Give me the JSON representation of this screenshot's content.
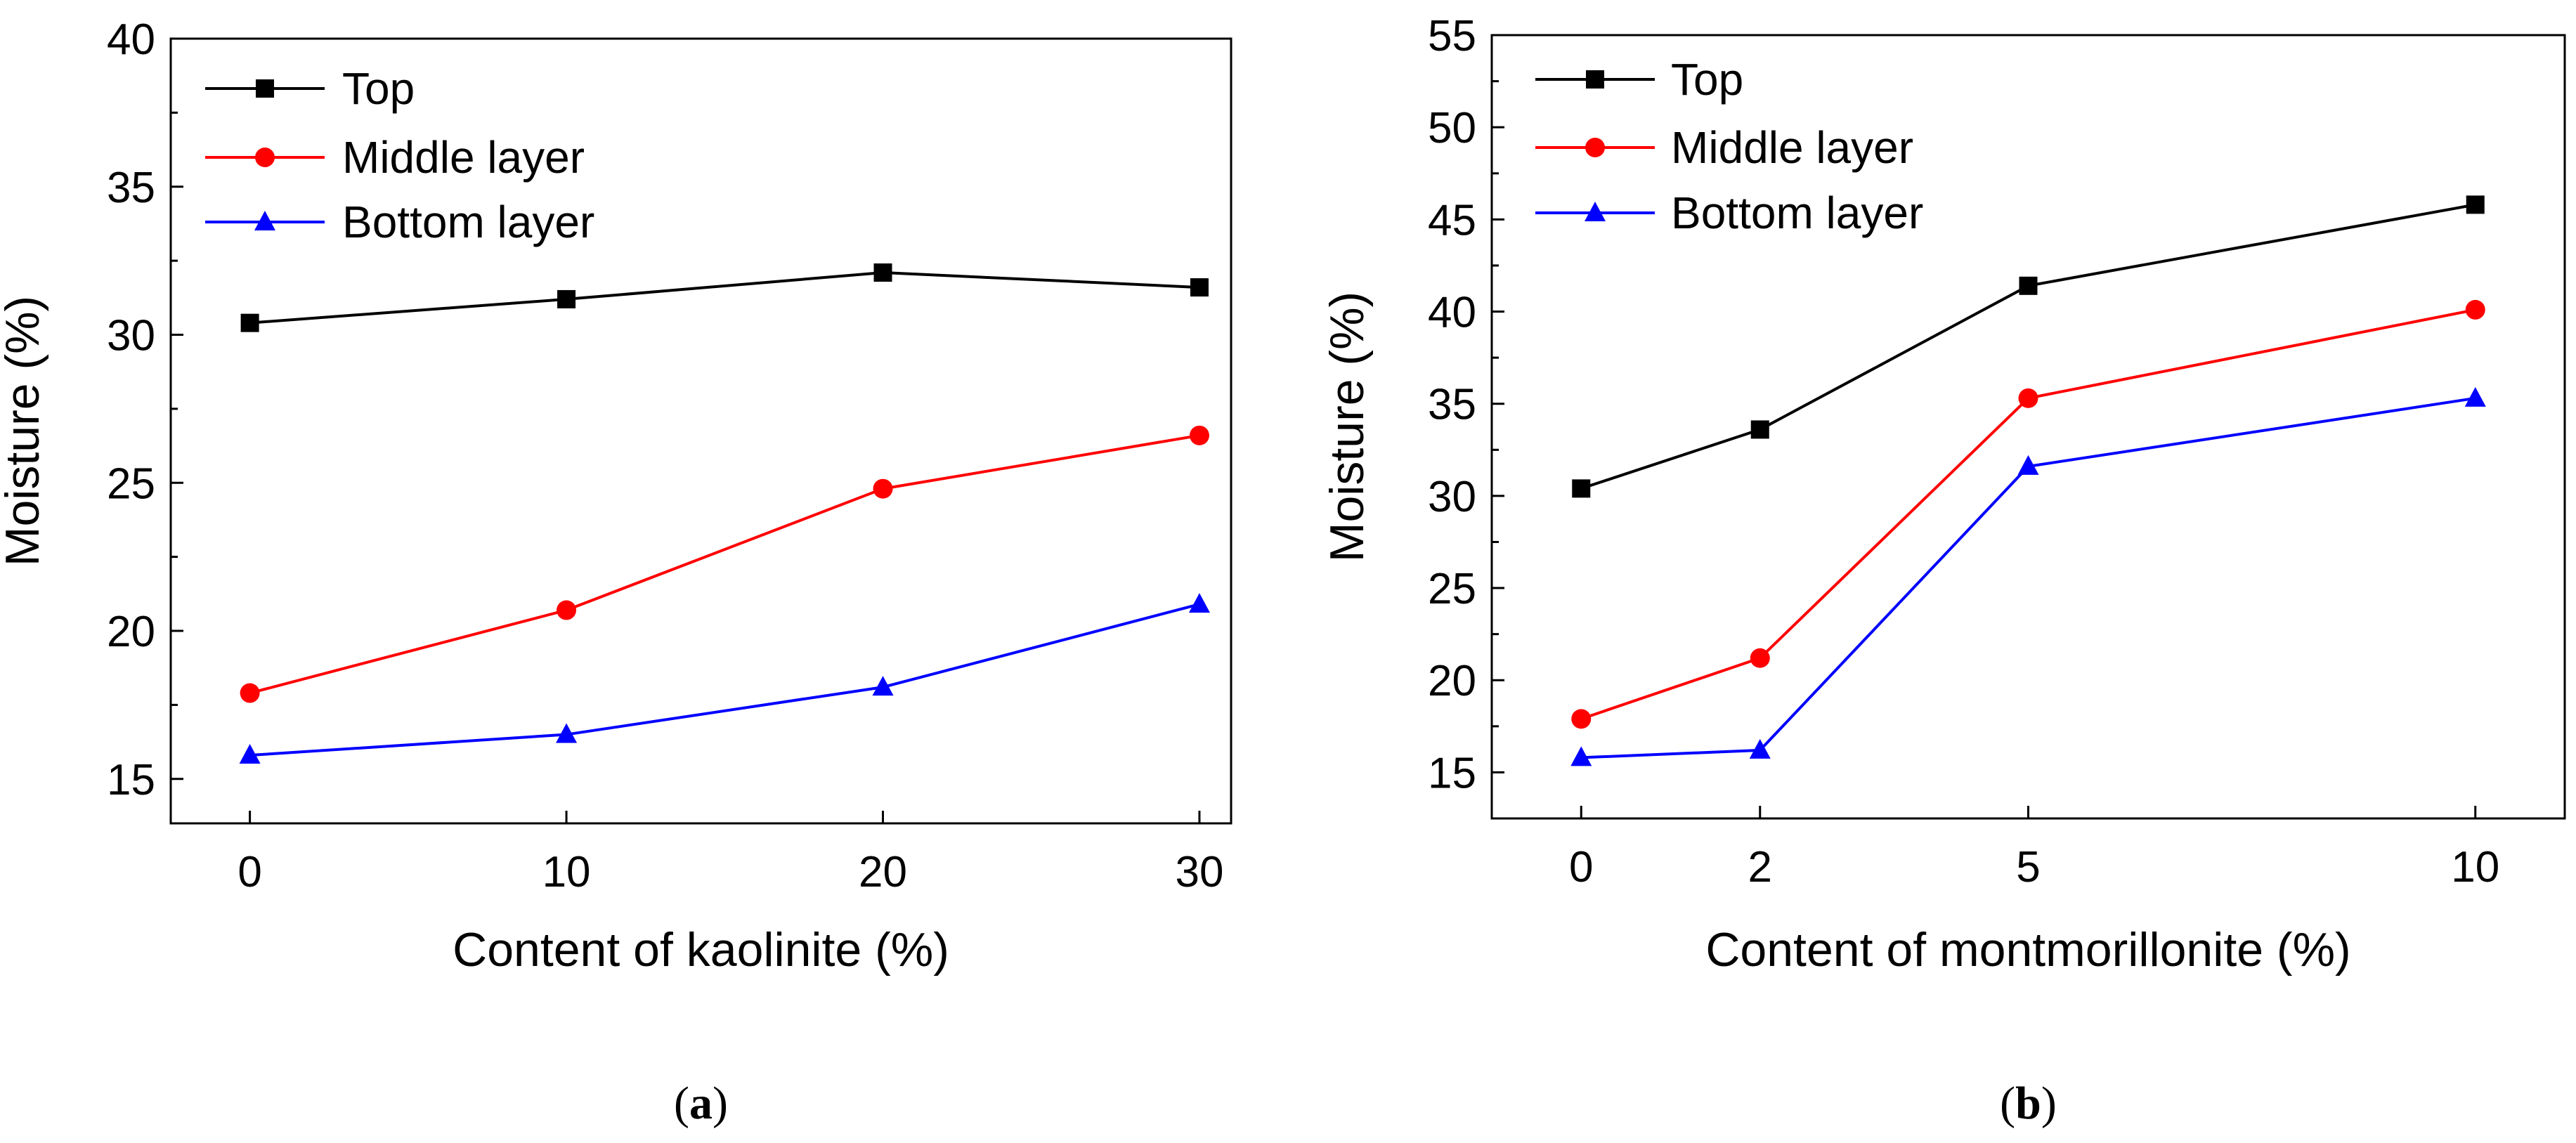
{
  "chart_data": [
    {
      "type": "line",
      "panel_label": "a",
      "title": "",
      "xlabel": "Content of kaolinite (%)",
      "ylabel": "Moisture (%)",
      "x": [
        0,
        10,
        20,
        30
      ],
      "xticks": [
        "0",
        "10",
        "20",
        "30"
      ],
      "xlim": [
        -2.5,
        31
      ],
      "ylim": [
        13.5,
        40
      ],
      "yticks": [
        "15",
        "20",
        "25",
        "30",
        "35",
        "40"
      ],
      "legend_position": "top-left",
      "series": [
        {
          "name": "Top",
          "color": "#000000",
          "marker": "square",
          "values": [
            30.4,
            31.2,
            32.1,
            31.6
          ]
        },
        {
          "name": "Middle layer",
          "color": "#ff0000",
          "marker": "circle",
          "values": [
            17.9,
            20.7,
            24.8,
            26.6
          ]
        },
        {
          "name": "Bottom layer",
          "color": "#0000ff",
          "marker": "triangle",
          "values": [
            15.8,
            16.5,
            18.1,
            20.9
          ]
        }
      ]
    },
    {
      "type": "line",
      "panel_label": "b",
      "title": "",
      "xlabel": "Content of montmorillonite (%)",
      "ylabel": "Moisture (%)",
      "x": [
        0,
        2,
        5,
        10
      ],
      "xticks": [
        "0",
        "2",
        "5",
        "10"
      ],
      "xlim": [
        -1,
        11
      ],
      "ylim": [
        12.5,
        55
      ],
      "yticks": [
        "15",
        "20",
        "25",
        "30",
        "35",
        "40",
        "45",
        "50",
        "55"
      ],
      "legend_position": "top-left",
      "series": [
        {
          "name": "Top",
          "color": "#000000",
          "marker": "square",
          "values": [
            30.4,
            33.6,
            41.4,
            45.8
          ]
        },
        {
          "name": "Middle layer",
          "color": "#ff0000",
          "marker": "circle",
          "values": [
            17.9,
            21.2,
            35.3,
            40.1
          ]
        },
        {
          "name": "Bottom layer",
          "color": "#0000ff",
          "marker": "triangle",
          "values": [
            15.8,
            16.2,
            31.6,
            35.3
          ]
        }
      ]
    }
  ]
}
